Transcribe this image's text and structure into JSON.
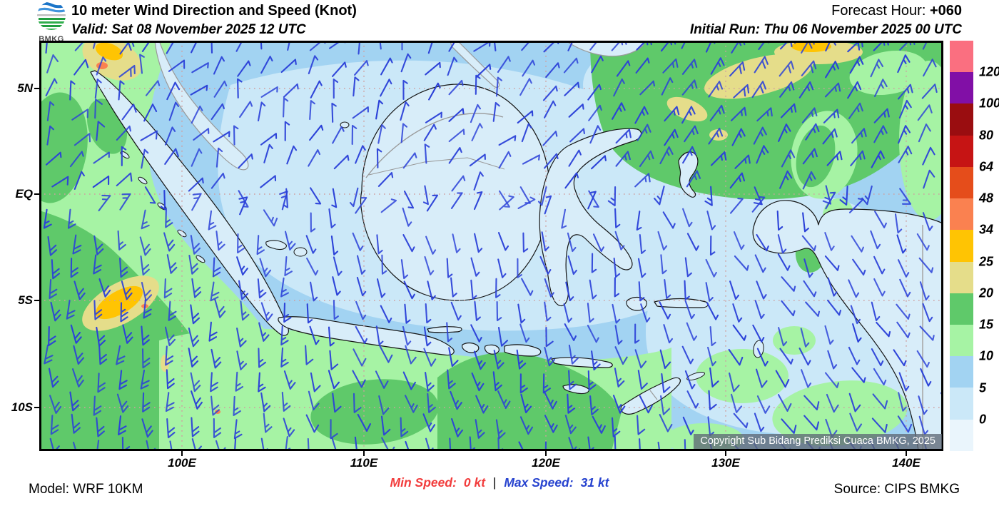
{
  "header": {
    "logo_text": "BMKG",
    "title": "10 meter Wind Direction and Speed (Knot)",
    "valid": "Valid: Sat 08 November 2025 12 UTC",
    "forecast_hour_label": "Forecast Hour:",
    "forecast_hour_value": "+060",
    "initial_run": "Initial Run: Thu 06 November 2025 00 UTC"
  },
  "map": {
    "lat_labels": [
      "5N",
      "EQ",
      "5S",
      "10S"
    ],
    "lon_labels": [
      "100E",
      "110E",
      "120E",
      "130E",
      "140E"
    ],
    "copyright": "Copyright Sub Bidang Prediksi Cuaca BMKG, 2025",
    "barb_color": "#2b41d8"
  },
  "legend": {
    "unit": "Knot",
    "labels": [
      "120",
      "100",
      "80",
      "64",
      "48",
      "34",
      "25",
      "20",
      "15",
      "10",
      "5",
      "0"
    ],
    "colors": [
      "#fa6f80",
      "#810fa6",
      "#9a0d10",
      "#c61414",
      "#e54d1b",
      "#fa8150",
      "#ffc403",
      "#e5dd8a",
      "#5fc96a",
      "#a6f3a4",
      "#a2d3f2",
      "#cbe8f8",
      "#eaf5fc"
    ]
  },
  "footer": {
    "model": "Model: WRF 10KM",
    "min_speed_label": "Min Speed:",
    "min_speed_value": "0 kt",
    "separator": "|",
    "max_speed_label": "Max Speed:",
    "max_speed_value": "31 kt",
    "source": "Source: CIPS BMKG"
  }
}
